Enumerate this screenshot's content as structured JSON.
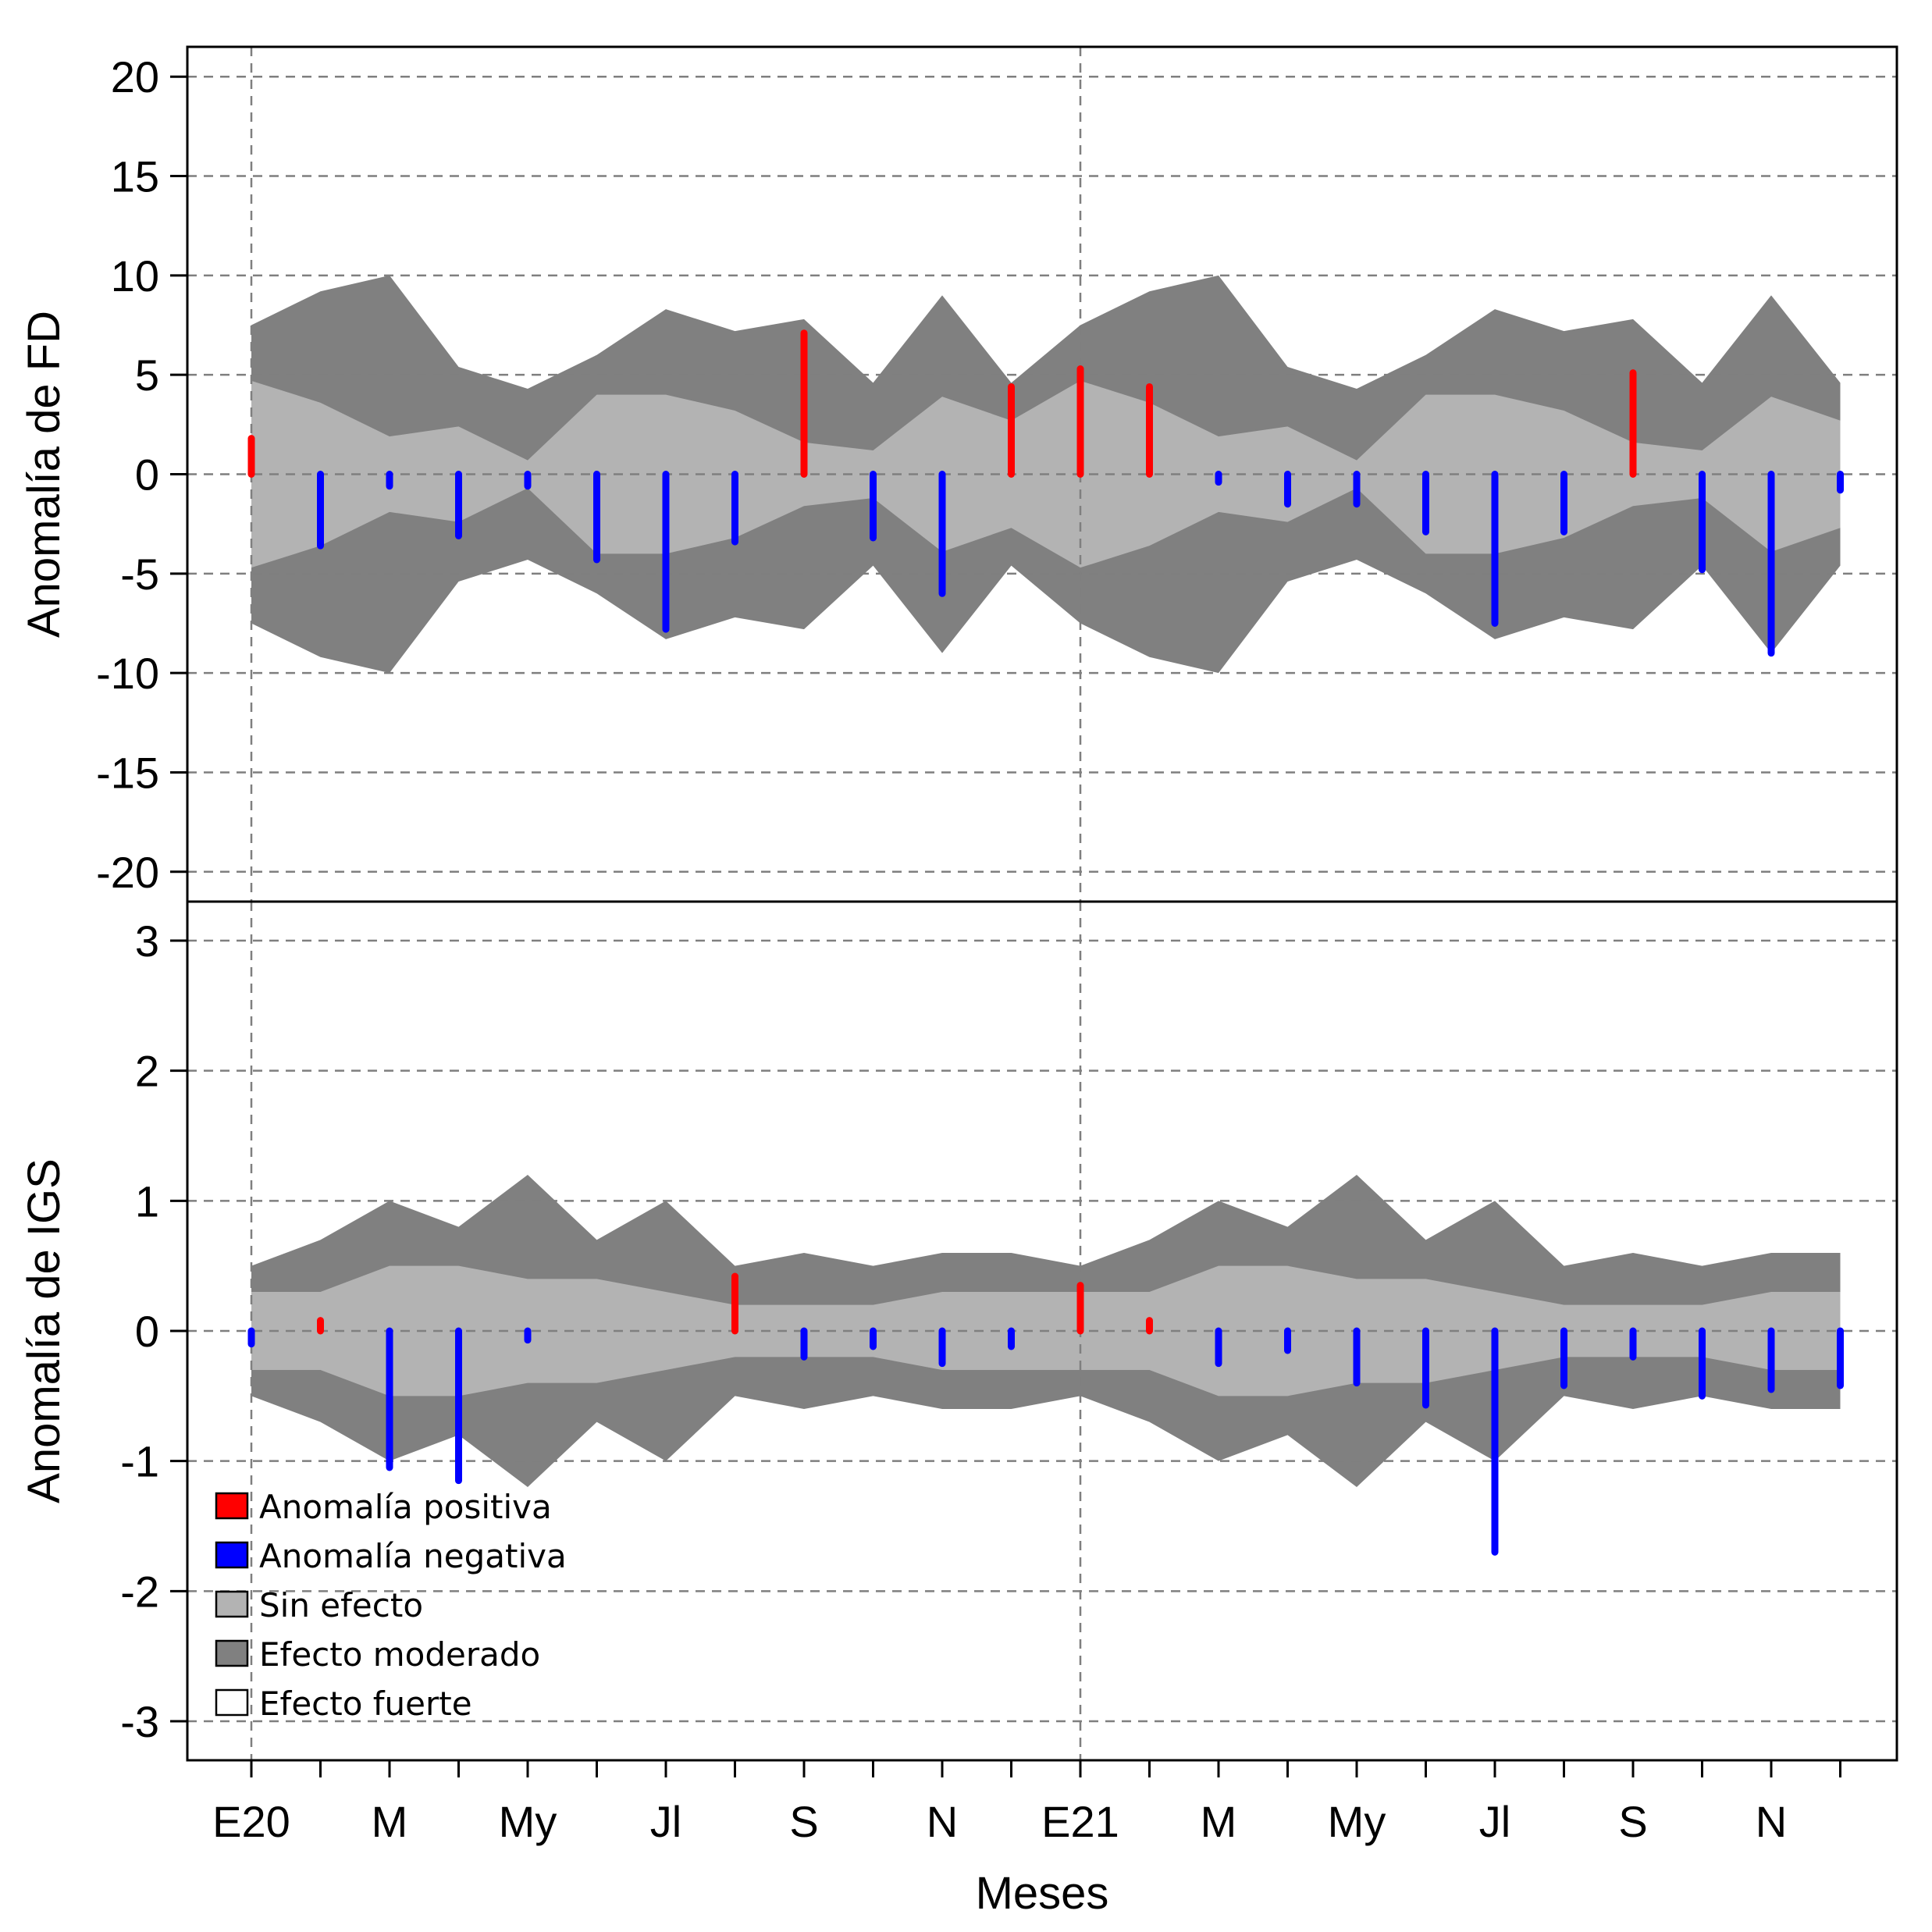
{
  "chart_data": {
    "type": "bar",
    "xlabel": "Meses",
    "month_labels": [
      "E20",
      "M",
      "My",
      "Jl",
      "S",
      "N",
      "E21",
      "M",
      "My",
      "Jl",
      "S",
      "N"
    ],
    "months_count": 24,
    "colors": {
      "positive": "#ff0000",
      "negative": "#0000ff",
      "sin_efecto": "#b3b3b3",
      "moderado": "#808080",
      "fuerte": "#ffffff",
      "grid": "#7f7f7f"
    },
    "legend": {
      "position": "bottom-left",
      "items": [
        {
          "label": "Anomalía positiva",
          "color": "#ff0000"
        },
        {
          "label": "Anomalía negativa",
          "color": "#0000ff"
        },
        {
          "label": "Sin efecto",
          "color": "#b3b3b3"
        },
        {
          "label": "Efecto moderado",
          "color": "#808080"
        },
        {
          "label": "Efecto fuerte",
          "color": "#ffffff"
        }
      ]
    },
    "panels": [
      {
        "ylabel": "Anomalía de FD",
        "ylim": [
          -21.5,
          21.5
        ],
        "yticks": [
          20,
          15,
          10,
          5,
          0,
          -5,
          -10,
          -15,
          -20
        ],
        "vertical_grid_months": [
          0,
          12
        ],
        "sin_efecto_upper": [
          4.7,
          3.6,
          1.9,
          2.4,
          0.7,
          4.0,
          4.0,
          3.2,
          1.6,
          1.2,
          3.9,
          2.7,
          4.7,
          3.6,
          1.9,
          2.4,
          0.7,
          4.0,
          4.0,
          3.2,
          1.6,
          1.2,
          3.9,
          2.7
        ],
        "moderado_upper": [
          7.5,
          9.2,
          10.0,
          5.4,
          4.3,
          6.0,
          8.3,
          7.2,
          7.8,
          4.6,
          9.0,
          4.6,
          7.5,
          9.2,
          10.0,
          5.4,
          4.3,
          6.0,
          8.3,
          7.2,
          7.8,
          4.6,
          9.0,
          4.6
        ],
        "values": [
          1.8,
          -3.6,
          -0.6,
          -3.1,
          -0.6,
          -4.3,
          -7.8,
          -3.4,
          7.1,
          -3.2,
          -6.0,
          4.4,
          5.3,
          4.4,
          -0.4,
          -1.5,
          -1.5,
          -2.9,
          -7.5,
          -2.9,
          5.1,
          -4.8,
          -9.0,
          -0.8
        ]
      },
      {
        "ylabel": "Anomalía de IGS",
        "ylim": [
          -3.3,
          3.3
        ],
        "yticks": [
          3,
          2,
          1,
          0,
          -1,
          -2,
          -3
        ],
        "vertical_grid_months": [
          0,
          12
        ],
        "sin_efecto_upper": [
          0.3,
          0.3,
          0.5,
          0.5,
          0.4,
          0.4,
          0.3,
          0.2,
          0.2,
          0.2,
          0.3,
          0.3,
          0.3,
          0.3,
          0.5,
          0.5,
          0.4,
          0.4,
          0.3,
          0.2,
          0.2,
          0.2,
          0.3,
          0.3
        ],
        "moderado_upper": [
          0.5,
          0.7,
          1.0,
          0.8,
          1.2,
          0.7,
          1.0,
          0.5,
          0.6,
          0.5,
          0.6,
          0.6,
          0.5,
          0.7,
          1.0,
          0.8,
          1.2,
          0.7,
          1.0,
          0.5,
          0.6,
          0.5,
          0.6,
          0.6
        ],
        "values": [
          -0.1,
          0.08,
          -1.05,
          -1.15,
          -0.07,
          0,
          0,
          0.42,
          -0.2,
          -0.12,
          -0.25,
          -0.12,
          0.35,
          0.08,
          -0.25,
          -0.15,
          -0.4,
          -0.57,
          -1.7,
          -0.42,
          -0.2,
          -0.5,
          -0.45,
          -0.42
        ]
      }
    ]
  }
}
